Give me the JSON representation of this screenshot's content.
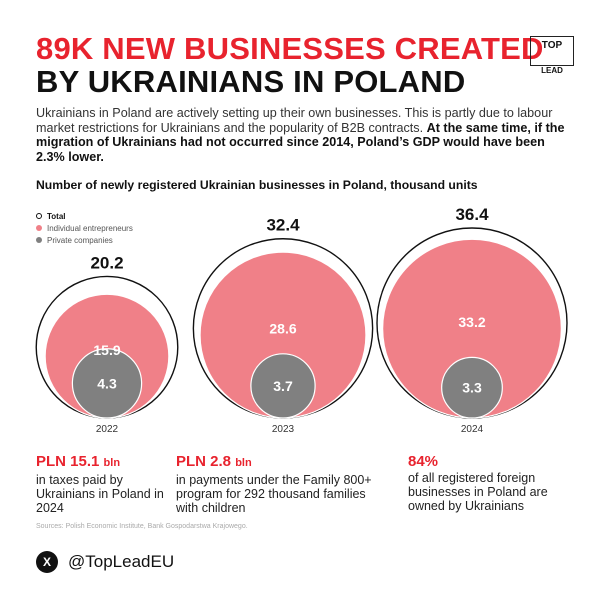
{
  "header": {
    "title_line1": "89K NEW BUSINESSES CREATED",
    "title_line2": "BY UKRAINIANS IN POLAND",
    "logo_top": "TOP",
    "logo_bottom": "LEAD"
  },
  "intro": {
    "text": "Ukrainians in Poland are actively setting up their own businesses. This is partly due to labour market restrictions for Ukrainians and the popularity of B2B contracts.",
    "bold": "At the same time, if the migration of Ukrainians had not occurred since 2014, Poland’s GDP would have been 2.3% lower."
  },
  "chart_data": {
    "type": "bubble",
    "title": "Number of newly registered Ukrainian businesses in Poland, thousand units",
    "legend": [
      "Total",
      "Individual entrepreneurs",
      "Private companies"
    ],
    "colors": {
      "total": "#ffffff",
      "individual": "#f08088",
      "private": "#808080"
    },
    "categories": [
      "2022",
      "2023",
      "2024"
    ],
    "series": [
      {
        "name": "Total",
        "values": [
          20.2,
          32.4,
          36.4
        ]
      },
      {
        "name": "Individual entrepreneurs",
        "values": [
          15.9,
          28.6,
          33.2
        ]
      },
      {
        "name": "Private companies",
        "values": [
          4.3,
          3.7,
          3.3
        ]
      }
    ]
  },
  "stats": [
    {
      "big": "PLN 15.1",
      "unit": "bln",
      "text": "in taxes paid by Ukrainians in Poland in 2024"
    },
    {
      "big": "PLN 2.8",
      "unit": "bln",
      "text": "in payments under the Family 800+ program for 292 thousand families with children"
    },
    {
      "big": "84%",
      "unit": "",
      "text": "of all registered foreign businesses in Poland are owned by Ukrainians"
    }
  ],
  "sources": "Sources: Polish Economic Institute, Bank Gospodarstwa Krajowego.",
  "footer": {
    "icon": "X",
    "handle": "@TopLeadEU"
  }
}
